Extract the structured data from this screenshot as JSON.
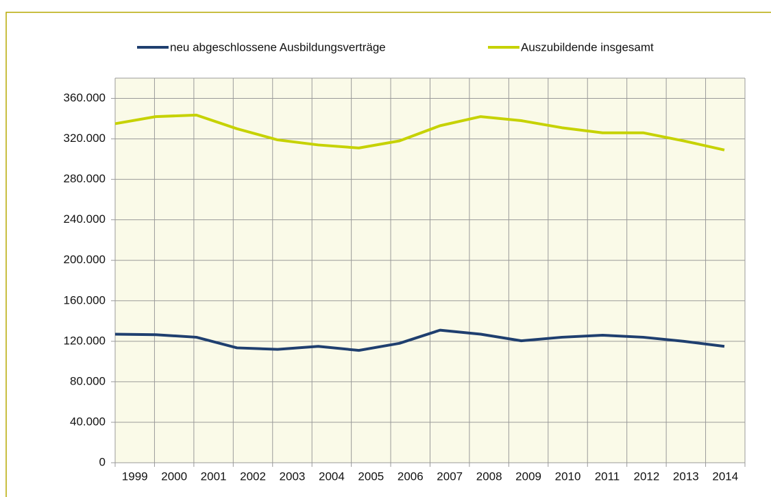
{
  "chart_data": {
    "type": "line",
    "categories": [
      "1999",
      "2000",
      "2001",
      "2002",
      "2003",
      "2004",
      "2005",
      "2006",
      "2007",
      "2008",
      "2009",
      "2010",
      "2011",
      "2012",
      "2013",
      "2014"
    ],
    "series": [
      {
        "name": "neu abgeschlossene Ausbildungsverträge",
        "color": "#1f3f6f",
        "values": [
          127000,
          126500,
          124000,
          113500,
          112000,
          115000,
          111000,
          118000,
          131000,
          127000,
          120500,
          124000,
          126000,
          124000,
          120000,
          115000
        ]
      },
      {
        "name": "Auszubildende insgesamt",
        "color": "#c6d200",
        "values": [
          335000,
          342000,
          343500,
          330000,
          319000,
          314000,
          311000,
          318000,
          333000,
          342000,
          338000,
          331000,
          326000,
          326000,
          318000,
          309000
        ]
      }
    ],
    "ylim": [
      0,
      380000
    ],
    "yticks": [
      0,
      {
        "value": 40000,
        "label": "40.000"
      },
      {
        "value": 80000,
        "label": "80.000"
      },
      {
        "value": 120000,
        "label": "120.000"
      },
      {
        "value": 160000,
        "label": "160.000"
      },
      {
        "value": 200000,
        "label": "200.000"
      },
      {
        "value": 240000,
        "label": "240.000"
      },
      {
        "value": 280000,
        "label": "280.000"
      },
      {
        "value": 320000,
        "label": "320.000"
      },
      {
        "value": 360000,
        "label": "360.000"
      }
    ],
    "grid": true,
    "legend": "top"
  }
}
